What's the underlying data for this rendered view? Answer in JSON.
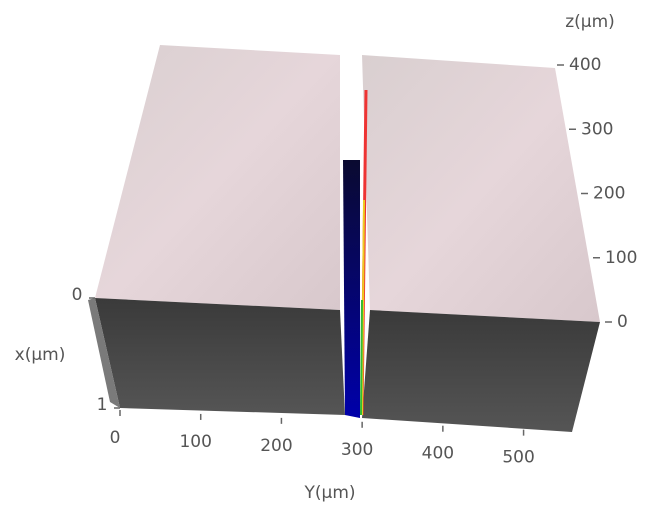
{
  "chart_data": {
    "type": "surface",
    "xlabel": "Y(µm)",
    "ylabel": "x(µm)",
    "zlabel": "z(µm)",
    "xlim": [
      0,
      560
    ],
    "xticks": [
      0,
      100,
      200,
      300,
      400,
      500
    ],
    "ylim": [
      0,
      1
    ],
    "yticks": [
      0,
      1
    ],
    "zlim": [
      0,
      400
    ],
    "zticks": [
      0,
      100,
      200,
      300,
      400
    ]
  }
}
